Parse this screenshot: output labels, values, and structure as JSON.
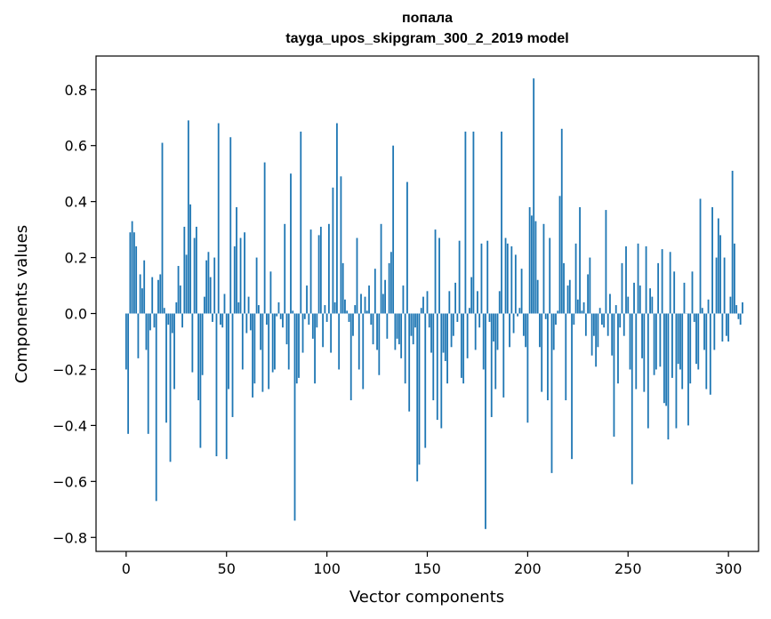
{
  "chart_data": {
    "type": "bar",
    "title": "попала",
    "subtitle": "tayga_upos_skipgram_300_2_2019 model",
    "xlabel": "Vector components",
    "ylabel": "Components values",
    "xlim": [
      -15,
      315
    ],
    "ylim": [
      -0.85,
      0.92
    ],
    "xticks": [
      0,
      50,
      100,
      150,
      200,
      250,
      300
    ],
    "xtick_labels": [
      "0",
      "50",
      "100",
      "150",
      "200",
      "250",
      "300"
    ],
    "yticks": [
      -0.8,
      -0.6,
      -0.4,
      -0.2,
      0.0,
      0.2,
      0.4,
      0.6,
      0.8
    ],
    "ytick_labels": [
      "−0.8",
      "−0.6",
      "−0.4",
      "−0.2",
      "0.0",
      "0.2",
      "0.4",
      "0.6",
      "0.8"
    ],
    "bar_color": "#1f77b4",
    "grid": false,
    "values": [
      -0.2,
      -0.43,
      0.29,
      0.33,
      0.29,
      0.24,
      -0.16,
      0.14,
      0.09,
      0.19,
      -0.13,
      -0.43,
      -0.06,
      0.13,
      -0.05,
      -0.67,
      0.12,
      0.14,
      0.61,
      0.02,
      -0.39,
      -0.04,
      -0.53,
      -0.07,
      -0.27,
      0.04,
      0.17,
      0.1,
      -0.05,
      0.31,
      0.21,
      0.69,
      0.39,
      -0.21,
      0.27,
      0.31,
      -0.31,
      -0.48,
      -0.22,
      0.06,
      0.19,
      0.22,
      0.13,
      -0.03,
      0.2,
      -0.51,
      0.68,
      -0.04,
      -0.05,
      0.07,
      -0.52,
      -0.27,
      0.63,
      -0.37,
      0.24,
      0.38,
      0.04,
      0.27,
      -0.2,
      0.29,
      -0.07,
      0.06,
      -0.06,
      -0.3,
      -0.25,
      0.2,
      0.03,
      -0.13,
      -0.28,
      0.54,
      -0.04,
      -0.27,
      0.15,
      -0.21,
      -0.2,
      -0.01,
      0.04,
      -0.02,
      -0.05,
      0.32,
      -0.11,
      -0.2,
      0.5,
      0.01,
      -0.74,
      -0.25,
      -0.23,
      0.65,
      -0.14,
      -0.02,
      0.1,
      -0.04,
      0.3,
      -0.09,
      -0.25,
      -0.05,
      0.28,
      0.31,
      -0.12,
      0.03,
      -0.03,
      0.32,
      -0.14,
      0.45,
      0.04,
      0.68,
      -0.2,
      0.49,
      0.18,
      0.05,
      0.01,
      -0.03,
      -0.31,
      -0.08,
      0.03,
      0.27,
      -0.2,
      0.07,
      -0.27,
      0.06,
      0.01,
      0.1,
      -0.04,
      -0.11,
      0.16,
      -0.13,
      -0.22,
      0.32,
      0.07,
      0.12,
      -0.09,
      0.18,
      0.22,
      0.6,
      -0.13,
      -0.09,
      -0.11,
      -0.16,
      0.1,
      -0.25,
      0.47,
      -0.35,
      -0.08,
      -0.11,
      -0.05,
      -0.6,
      -0.54,
      0.02,
      0.06,
      -0.48,
      0.08,
      -0.05,
      -0.14,
      -0.31,
      0.3,
      -0.38,
      0.27,
      -0.41,
      -0.14,
      -0.17,
      -0.25,
      0.08,
      -0.12,
      -0.08,
      0.11,
      -0.03,
      0.26,
      -0.23,
      -0.25,
      0.65,
      -0.16,
      0.02,
      0.13,
      0.65,
      -0.13,
      0.08,
      -0.05,
      0.25,
      -0.2,
      -0.77,
      0.26,
      -0.03,
      -0.37,
      -0.1,
      -0.27,
      -0.13,
      0.08,
      0.65,
      -0.3,
      0.27,
      0.25,
      -0.12,
      0.24,
      -0.07,
      0.21,
      -0.01,
      0.02,
      0.16,
      -0.08,
      -0.12,
      -0.39,
      0.38,
      0.35,
      0.84,
      0.33,
      0.12,
      -0.12,
      -0.28,
      0.32,
      -0.02,
      -0.31,
      0.27,
      -0.57,
      -0.13,
      -0.04,
      0.01,
      0.42,
      0.66,
      0.18,
      -0.31,
      0.1,
      0.12,
      -0.52,
      -0.04,
      0.25,
      0.05,
      0.38,
      0.01,
      0.04,
      -0.08,
      0.14,
      0.2,
      -0.15,
      -0.08,
      -0.19,
      -0.12,
      0.02,
      -0.04,
      -0.05,
      0.37,
      -0.08,
      0.07,
      -0.15,
      -0.44,
      0.03,
      -0.25,
      -0.05,
      0.18,
      -0.08,
      0.24,
      0.06,
      -0.2,
      -0.61,
      0.11,
      -0.27,
      0.25,
      0.1,
      -0.16,
      -0.28,
      0.24,
      -0.41,
      0.09,
      0.06,
      -0.22,
      -0.2,
      0.18,
      -0.19,
      0.23,
      -0.32,
      -0.33,
      -0.45,
      0.22,
      -0.23,
      0.15,
      -0.41,
      -0.18,
      -0.2,
      -0.27,
      0.11,
      0.0,
      -0.4,
      -0.25,
      0.15,
      -0.03,
      -0.18,
      -0.2,
      0.41,
      0.02,
      -0.13,
      -0.27,
      0.05,
      -0.29,
      0.38,
      -0.13,
      0.2,
      0.34,
      0.28,
      -0.1,
      0.2,
      -0.08,
      -0.1,
      0.06,
      0.51,
      0.25,
      0.03,
      -0.02,
      -0.04,
      0.04
    ]
  }
}
